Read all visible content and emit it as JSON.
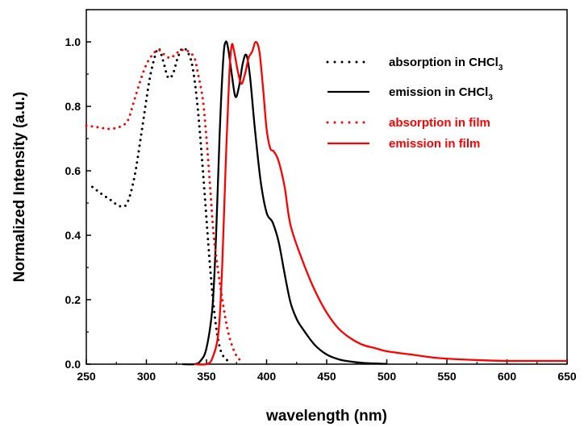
{
  "chart_data": {
    "type": "line",
    "xlabel": "wavelength (nm)",
    "ylabel": "Normalized Intensity (a.u.)",
    "xlim": [
      250,
      650
    ],
    "ylim": [
      0.0,
      1.1
    ],
    "x_ticks": [
      "250",
      "300",
      "350",
      "400",
      "450",
      "500",
      "550",
      "600",
      "650"
    ],
    "y_ticks": [
      "0.0",
      "0.2",
      "0.4",
      "0.6",
      "0.8",
      "1.0"
    ],
    "grid": false,
    "legend_position": "top-right",
    "series": [
      {
        "name": "absorption in CHCl",
        "name_subscript": "3",
        "color": "#000000",
        "style": "dotted",
        "x": [
          255,
          262,
          270,
          278,
          284,
          290,
          296,
          302,
          306,
          310,
          314,
          318,
          322,
          326,
          330,
          334,
          338,
          342,
          346,
          350,
          353,
          356,
          359,
          362,
          365,
          368
        ],
        "y": [
          0.55,
          0.53,
          0.51,
          0.49,
          0.5,
          0.58,
          0.72,
          0.87,
          0.94,
          0.98,
          0.94,
          0.89,
          0.9,
          0.95,
          0.98,
          0.97,
          0.93,
          0.82,
          0.65,
          0.45,
          0.3,
          0.18,
          0.09,
          0.04,
          0.02,
          0.01
        ]
      },
      {
        "name": "emission in CHCl",
        "name_subscript": "3",
        "color": "#000000",
        "style": "solid",
        "x": [
          330,
          340,
          345,
          350,
          355,
          358,
          361,
          364,
          366,
          368,
          371,
          374,
          377,
          380,
          383,
          386,
          390,
          395,
          400,
          405,
          410,
          415,
          420,
          425,
          430,
          440,
          450,
          460,
          470,
          480,
          490,
          500
        ],
        "y": [
          0.0,
          0.0,
          0.01,
          0.05,
          0.18,
          0.4,
          0.72,
          0.95,
          1.0,
          0.98,
          0.9,
          0.83,
          0.86,
          0.93,
          0.96,
          0.9,
          0.74,
          0.57,
          0.47,
          0.44,
          0.38,
          0.28,
          0.19,
          0.14,
          0.11,
          0.06,
          0.03,
          0.015,
          0.008,
          0.004,
          0.002,
          0.001
        ]
      },
      {
        "name": "absorption in film",
        "color": "#ff0000",
        "style": "dotted",
        "x": [
          250,
          260,
          270,
          280,
          285,
          290,
          295,
          300,
          305,
          310,
          315,
          320,
          325,
          330,
          335,
          340,
          343,
          347,
          350,
          353,
          356,
          360,
          364,
          368,
          372,
          376,
          380
        ],
        "y": [
          0.74,
          0.735,
          0.73,
          0.74,
          0.76,
          0.82,
          0.88,
          0.93,
          0.96,
          0.975,
          0.96,
          0.95,
          0.965,
          0.975,
          0.97,
          0.95,
          0.9,
          0.82,
          0.7,
          0.55,
          0.4,
          0.28,
          0.18,
          0.1,
          0.05,
          0.02,
          0.01
        ]
      },
      {
        "name": "emission in film",
        "color": "#ff0000",
        "style": "solid",
        "x": [
          340,
          350,
          355,
          360,
          363,
          366,
          369,
          371,
          373,
          376,
          379,
          382,
          385,
          388,
          391,
          394,
          397,
          400,
          403,
          406,
          410,
          415,
          420,
          430,
          440,
          450,
          460,
          470,
          480,
          490,
          500,
          520,
          540,
          560,
          580,
          600,
          620,
          650
        ],
        "y": [
          0.0,
          0.0,
          0.02,
          0.1,
          0.3,
          0.62,
          0.9,
          0.99,
          0.97,
          0.91,
          0.87,
          0.9,
          0.95,
          0.97,
          1.0,
          0.97,
          0.86,
          0.73,
          0.67,
          0.66,
          0.63,
          0.55,
          0.43,
          0.32,
          0.23,
          0.16,
          0.11,
          0.08,
          0.06,
          0.05,
          0.04,
          0.03,
          0.02,
          0.015,
          0.012,
          0.01,
          0.01,
          0.01
        ]
      }
    ]
  }
}
